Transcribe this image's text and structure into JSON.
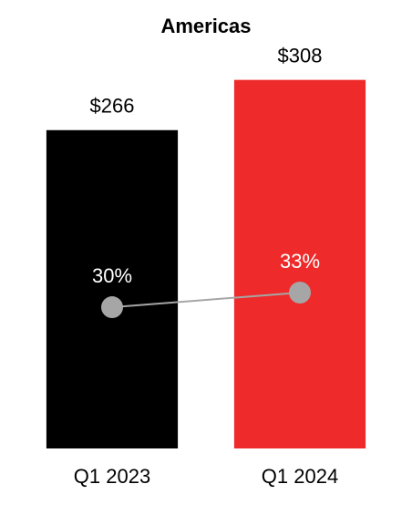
{
  "chart_data": {
    "type": "bar",
    "title": "Americas",
    "categories": [
      "Q1 2023",
      "Q1 2024"
    ],
    "values": [
      266,
      308
    ],
    "value_labels": [
      "$266",
      "$308"
    ],
    "colors": [
      "#000000",
      "#ee2a2a"
    ],
    "ylim": [
      0,
      350
    ],
    "line": {
      "values": [
        30,
        33
      ],
      "value_labels": [
        "30%",
        "33%"
      ],
      "color": "#a6a6a6",
      "axis": "y2"
    },
    "y2lim": [
      1,
      87
    ]
  }
}
